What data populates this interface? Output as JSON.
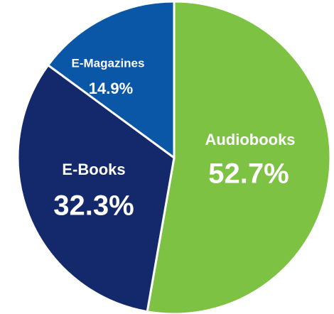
{
  "chart_data": {
    "type": "pie",
    "categories": [
      "Audiobooks",
      "E-Books",
      "E-Magazines"
    ],
    "values": [
      52.7,
      32.3,
      14.9
    ],
    "value_labels": [
      "52.7%",
      "32.3%",
      "14.9%"
    ],
    "colors": [
      "#7dc242",
      "#14296b",
      "#0a57a8"
    ]
  }
}
